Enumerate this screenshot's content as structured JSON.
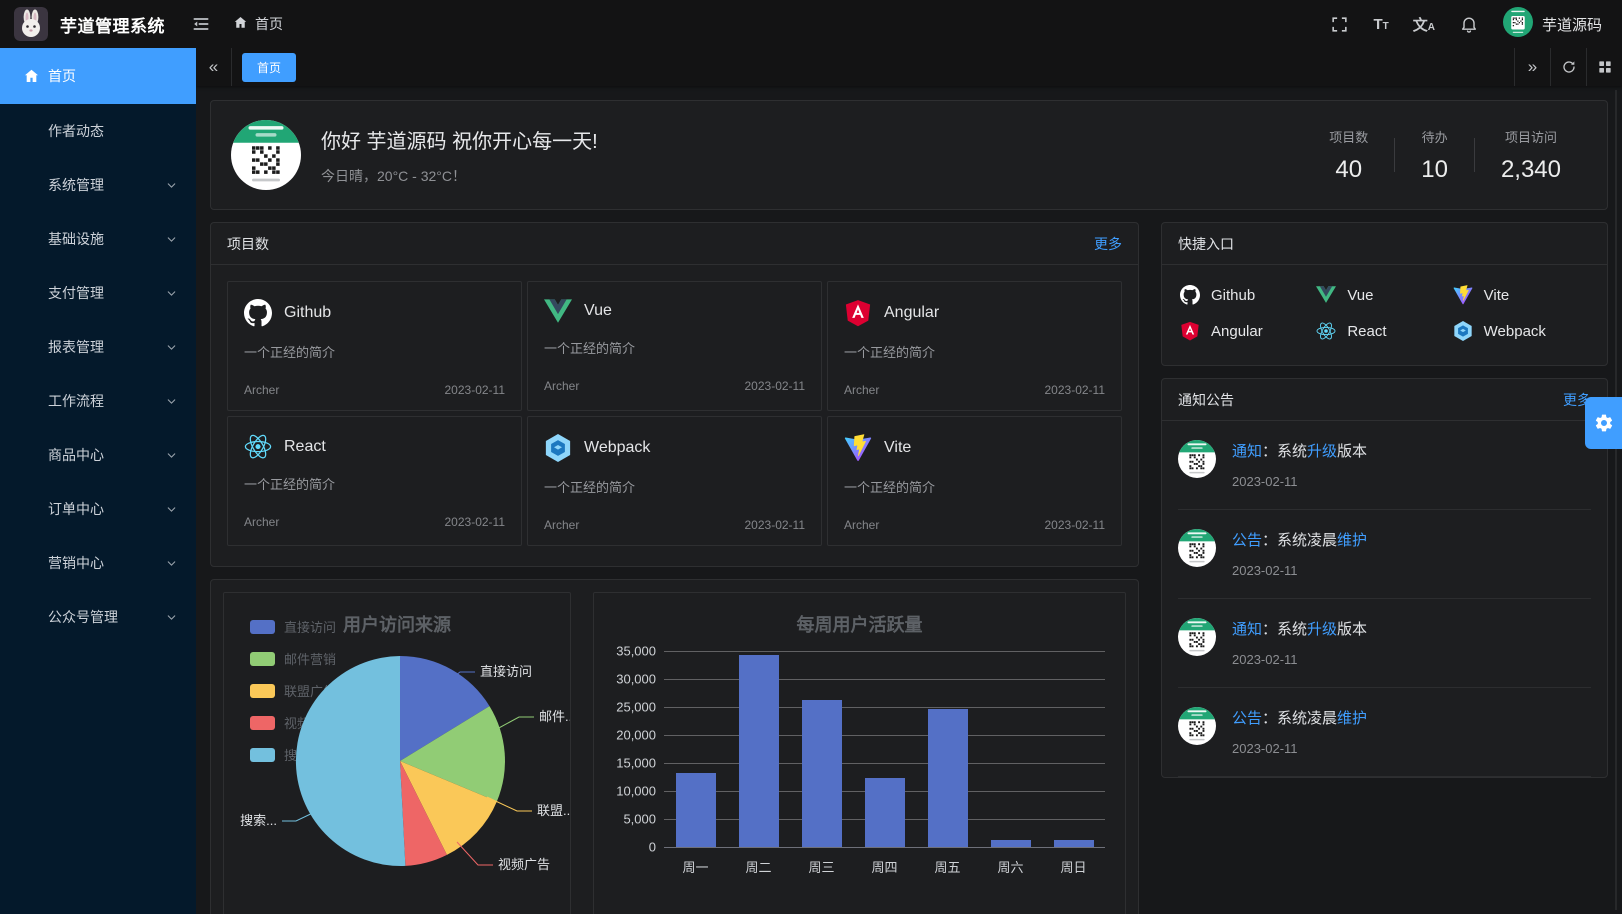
{
  "app": {
    "title": "芋道管理系统",
    "user": "芋道源码"
  },
  "navbar": {
    "breadcrumb": "首页",
    "icons": [
      "fullscreen-icon",
      "font-size-icon",
      "locale-icon",
      "bell-icon"
    ]
  },
  "sidebar": {
    "items": [
      {
        "label": "首页",
        "active": true,
        "icon": "home",
        "chevron": false
      },
      {
        "label": "作者动态",
        "active": false,
        "icon": "",
        "chevron": false
      },
      {
        "label": "系统管理",
        "active": false,
        "icon": "",
        "chevron": true
      },
      {
        "label": "基础设施",
        "active": false,
        "icon": "",
        "chevron": true
      },
      {
        "label": "支付管理",
        "active": false,
        "icon": "",
        "chevron": true
      },
      {
        "label": "报表管理",
        "active": false,
        "icon": "",
        "chevron": true
      },
      {
        "label": "工作流程",
        "active": false,
        "icon": "",
        "chevron": true
      },
      {
        "label": "商品中心",
        "active": false,
        "icon": "",
        "chevron": true
      },
      {
        "label": "订单中心",
        "active": false,
        "icon": "",
        "chevron": true
      },
      {
        "label": "营销中心",
        "active": false,
        "icon": "",
        "chevron": true
      },
      {
        "label": "公众号管理",
        "active": false,
        "icon": "",
        "chevron": true
      }
    ]
  },
  "tabbar": {
    "tabs": [
      {
        "label": "首页",
        "active": true
      }
    ]
  },
  "welcome": {
    "greeting": "你好 芋道源码 祝你开心每一天!",
    "weather": "今日晴，20°C - 32°C！",
    "stats": [
      {
        "label": "项目数",
        "value": "40"
      },
      {
        "label": "待办",
        "value": "10"
      },
      {
        "label": "项目访问",
        "value": "2,340"
      }
    ]
  },
  "projects": {
    "title": "项目数",
    "more": "更多",
    "items": [
      {
        "name": "Github",
        "icon": "github",
        "desc": "一个正经的简介",
        "author": "Archer",
        "date": "2023-02-11"
      },
      {
        "name": "Vue",
        "icon": "vue",
        "desc": "一个正经的简介",
        "author": "Archer",
        "date": "2023-02-11"
      },
      {
        "name": "Angular",
        "icon": "angular",
        "desc": "一个正经的简介",
        "author": "Archer",
        "date": "2023-02-11"
      },
      {
        "name": "React",
        "icon": "react",
        "desc": "一个正经的简介",
        "author": "Archer",
        "date": "2023-02-11"
      },
      {
        "name": "Webpack",
        "icon": "webpack",
        "desc": "一个正经的简介",
        "author": "Archer",
        "date": "2023-02-11"
      },
      {
        "name": "Vite",
        "icon": "vite",
        "desc": "一个正经的简介",
        "author": "Archer",
        "date": "2023-02-11"
      }
    ]
  },
  "quick": {
    "title": "快捷入口",
    "items": [
      {
        "name": "Github",
        "icon": "github"
      },
      {
        "name": "Vue",
        "icon": "vue"
      },
      {
        "name": "Vite",
        "icon": "vite"
      },
      {
        "name": "Angular",
        "icon": "angular"
      },
      {
        "name": "React",
        "icon": "react"
      },
      {
        "name": "Webpack",
        "icon": "webpack"
      }
    ]
  },
  "notices": {
    "title": "通知公告",
    "more": "更多",
    "items": [
      {
        "segments": [
          {
            "text": "通知",
            "link": true
          },
          {
            "text": "：系统",
            "link": false
          },
          {
            "text": "升级",
            "link": true
          },
          {
            "text": "版本",
            "link": false
          }
        ],
        "date": "2023-02-11"
      },
      {
        "segments": [
          {
            "text": "公告",
            "link": true
          },
          {
            "text": "：系统凌晨",
            "link": false
          },
          {
            "text": "维护",
            "link": true
          }
        ],
        "date": "2023-02-11"
      },
      {
        "segments": [
          {
            "text": "通知",
            "link": true
          },
          {
            "text": "：系统",
            "link": false
          },
          {
            "text": "升级",
            "link": true
          },
          {
            "text": "版本",
            "link": false
          }
        ],
        "date": "2023-02-11"
      },
      {
        "segments": [
          {
            "text": "公告",
            "link": true
          },
          {
            "text": "：系统凌晨",
            "link": false
          },
          {
            "text": "维护",
            "link": true
          }
        ],
        "date": "2023-02-11"
      }
    ]
  },
  "chart_data": [
    {
      "type": "pie",
      "title": "用户访问来源",
      "legend_position": "left",
      "legend": [
        "直接访问",
        "邮件营销",
        "联盟广告",
        "视频广告",
        "搜索引擎"
      ],
      "series": [
        {
          "name": "直接访问",
          "value": 335,
          "color": "#5470c6",
          "callout_label": "直接访问"
        },
        {
          "name": "邮件营销",
          "value": 310,
          "color": "#91cc75",
          "callout_label": "邮件..."
        },
        {
          "name": "联盟广告",
          "value": 234,
          "color": "#fac858",
          "callout_label": "联盟..."
        },
        {
          "name": "视频广告",
          "value": 135,
          "color": "#ee6666",
          "callout_label": "视频广告"
        },
        {
          "name": "搜索引擎",
          "value": 1048,
          "color": "#73c0de",
          "callout_label": "搜索..."
        }
      ]
    },
    {
      "type": "bar",
      "title": "每周用户活跃量",
      "categories": [
        "周一",
        "周二",
        "周三",
        "周四",
        "周五",
        "周六",
        "周日"
      ],
      "values": [
        13300,
        34300,
        26300,
        12400,
        24700,
        1300,
        1300
      ],
      "ylim": [
        0,
        35000
      ],
      "ytick_step": 5000,
      "bar_color": "#5470c6",
      "grid": true
    }
  ],
  "colors": {
    "primary": "#409eff",
    "sidebar_bg": "#04192b",
    "card_bg": "#1d1e20"
  }
}
